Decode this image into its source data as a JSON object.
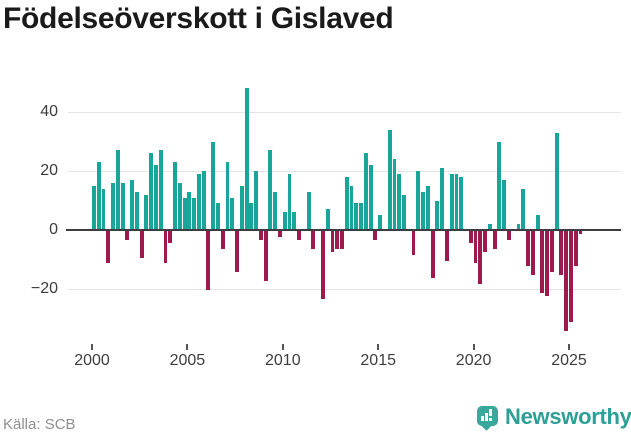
{
  "title": "Födelseöverskott i Gislaved",
  "footer": {
    "source": "Källa: SCB",
    "brand": "Newsworthy"
  },
  "colors": {
    "positive_bar": "#18a69b",
    "negative_bar": "#9c1a4e",
    "grid": "#e4e4e4",
    "zero_line": "#3d3d3d",
    "brand_teal": "#2d9f96",
    "title_text": "#1a1a1a",
    "axis_text": "#3d3d3d",
    "source_text": "#8f8f8f"
  },
  "chart_data": {
    "type": "bar",
    "title": "Födelseöverskott i Gislaved",
    "period": "quarterly",
    "start": "2000-Q1",
    "end": "2025-Q3",
    "x_tick_labels": [
      "2000",
      "2005",
      "2010",
      "2015",
      "2020",
      "2025"
    ],
    "y_ticks": [
      40,
      20,
      0,
      -20
    ],
    "y_tick_labels": [
      "40",
      "20",
      "0",
      "−20"
    ],
    "ylim": [
      -36,
      50
    ],
    "grid": "horizontal",
    "legend": "none",
    "xlabel": "",
    "ylabel": "",
    "values": [
      15,
      23,
      14,
      -11,
      16,
      27,
      16,
      -3,
      17,
      13,
      -9,
      12,
      26,
      22,
      27,
      -11,
      -4,
      23,
      16,
      11,
      13,
      11,
      19,
      20,
      -20,
      30,
      9,
      -6,
      23,
      11,
      -14,
      15,
      48,
      9,
      20,
      -3,
      -17,
      27,
      13,
      -2,
      6,
      19,
      6,
      -3,
      0,
      13,
      -6,
      0,
      -23,
      7,
      -7,
      -6,
      -6,
      18,
      15,
      9,
      9,
      26,
      22,
      -3,
      5,
      0,
      34,
      24,
      19,
      12,
      0,
      -8,
      20,
      13,
      15,
      -16,
      10,
      21,
      -10,
      19,
      19,
      18,
      0,
      -4,
      -11,
      -18,
      -7,
      2,
      -6,
      30,
      17,
      -3,
      0,
      2,
      14,
      -12,
      -15,
      5,
      -21,
      -22,
      -14,
      33,
      -15,
      -34,
      -31,
      -12,
      -1
    ]
  }
}
